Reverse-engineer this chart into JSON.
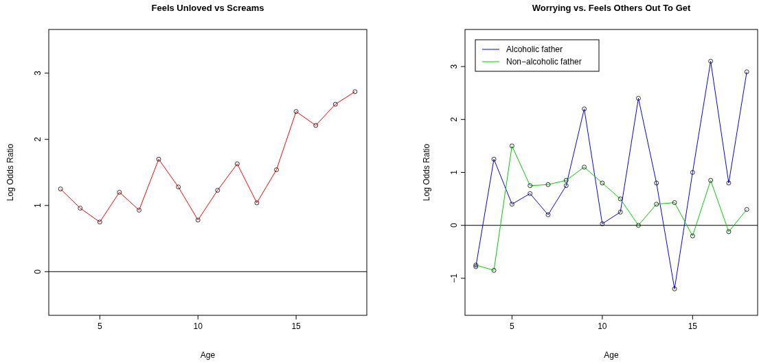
{
  "chart_data": [
    {
      "type": "line",
      "title": "Feels Unloved vs Screams",
      "xlabel": "Age",
      "ylabel": "Log Odds Ratio",
      "x": [
        3,
        4,
        5,
        6,
        7,
        8,
        9,
        10,
        11,
        12,
        13,
        14,
        15,
        16,
        17,
        18
      ],
      "values": [
        1.25,
        0.96,
        0.75,
        1.2,
        0.93,
        1.7,
        1.28,
        0.78,
        1.23,
        1.63,
        1.04,
        1.54,
        2.42,
        2.21,
        2.53,
        2.72
      ],
      "color": "#ff0000",
      "xlim": [
        2.4,
        18.6
      ],
      "xticks": [
        5,
        10,
        15
      ],
      "ylim": [
        -0.66,
        3.66
      ],
      "yticks": [
        0,
        1,
        2,
        3
      ],
      "grid": false,
      "legend": false,
      "marker": "circle",
      "ref_lines": [
        {
          "axis": "y",
          "value": 0
        }
      ]
    },
    {
      "type": "line",
      "title": "Worrying vs. Feels Others Out To Get",
      "xlabel": "Age",
      "ylabel": "Log Odds Ratio",
      "x": [
        3,
        4,
        5,
        6,
        7,
        8,
        9,
        10,
        11,
        12,
        13,
        14,
        15,
        16,
        17,
        18
      ],
      "series": [
        {
          "name": "Alcoholic father",
          "color": "#0000ff",
          "values": [
            -0.78,
            1.25,
            0.4,
            0.6,
            0.2,
            0.75,
            2.2,
            0.03,
            0.25,
            2.4,
            0.8,
            -1.2,
            1.0,
            3.1,
            0.8,
            2.9
          ]
        },
        {
          "name": "Non−alcoholic father",
          "color": "#00cd00",
          "values": [
            -0.75,
            -0.85,
            1.5,
            0.75,
            0.77,
            0.85,
            1.1,
            0.8,
            0.5,
            0.0,
            0.4,
            0.43,
            -0.2,
            0.85,
            -0.12,
            0.3
          ]
        }
      ],
      "xlim": [
        2.4,
        18.6
      ],
      "xticks": [
        5,
        10,
        15
      ],
      "ylim": [
        -1.7,
        3.7
      ],
      "yticks": [
        -1,
        0,
        1,
        2,
        3
      ],
      "grid": false,
      "legend": "top left",
      "marker": "circle",
      "ref_lines": [
        {
          "axis": "y",
          "value": 0
        }
      ]
    }
  ]
}
